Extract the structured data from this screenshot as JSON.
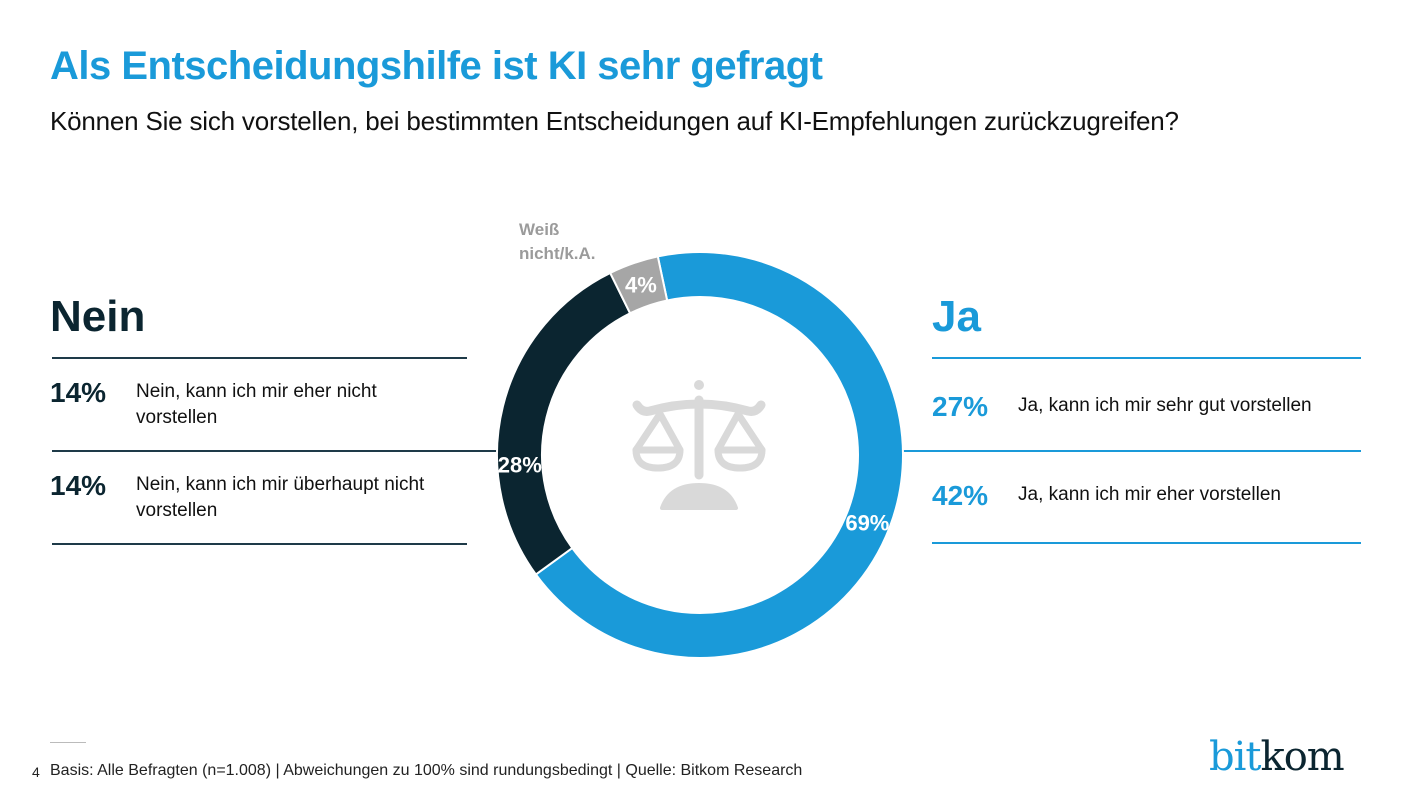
{
  "header": {
    "title": "Als Entscheidungshilfe ist KI sehr gefragt",
    "subtitle": "Können Sie sich vorstellen, bei bestimmten Entscheidungen auf KI-Empfehlungen zurückzugreifen?"
  },
  "nein": {
    "heading": "Nein",
    "rows": [
      {
        "pct": "14%",
        "label": "Nein, kann ich mir eher nicht vorstellen"
      },
      {
        "pct": "14%",
        "label": "Nein, kann ich mir überhaupt nicht vorstellen"
      }
    ]
  },
  "ja": {
    "heading": "Ja",
    "rows": [
      {
        "pct": "27%",
        "label": "Ja, kann ich mir sehr gut vorstellen"
      },
      {
        "pct": "42%",
        "label": "Ja, kann ich mir eher vorstellen"
      }
    ]
  },
  "center_icon": "scales-icon",
  "footer": {
    "page": "4",
    "text": "Basis: Alle Befragten (n=1.008) | Abweichungen zu 100% sind rundungsbedingt | Quelle: Bitkom Research"
  },
  "logo": {
    "part1": "bit",
    "part2": "kom"
  },
  "colors": {
    "ja": "#1a9ad9",
    "nein": "#0b2530",
    "weiss_nicht": "#a6a6a6",
    "icon": "#d9d9d9"
  },
  "chart_data": {
    "type": "pie",
    "variant": "donut",
    "title": "Als Entscheidungshilfe ist KI sehr gefragt",
    "slices": [
      {
        "name": "Ja",
        "value": 69,
        "label": "69%",
        "color": "#1a9ad9"
      },
      {
        "name": "Nein",
        "value": 28,
        "label": "28%",
        "color": "#0b2530"
      },
      {
        "name": "Weiß nicht/k.A.",
        "value": 4,
        "label": "4%",
        "color": "#a6a6a6"
      }
    ],
    "outside_label": "Weiß nicht/k.A.",
    "start": "top, clockwise from Ja"
  }
}
